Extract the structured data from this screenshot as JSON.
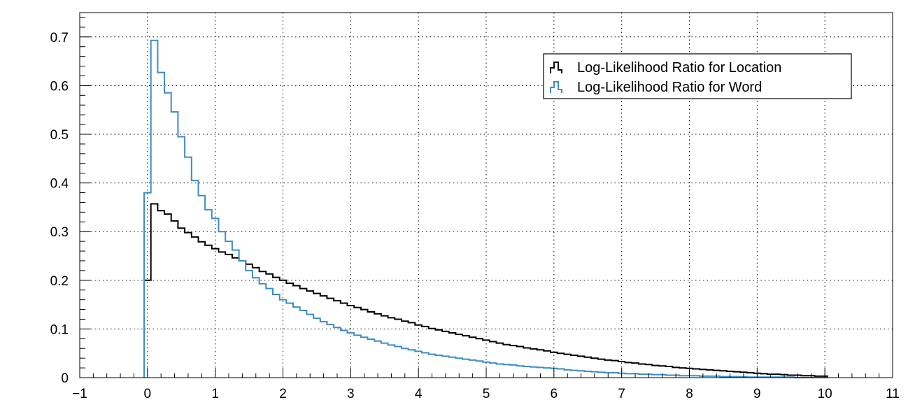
{
  "chart_data": {
    "type": "line",
    "title": "",
    "xlabel": "",
    "ylabel": "",
    "xlim": [
      -1,
      11
    ],
    "ylim": [
      0,
      0.75
    ],
    "xticks": [
      -1,
      0,
      1,
      2,
      3,
      4,
      5,
      6,
      7,
      8,
      9,
      10,
      11
    ],
    "xtick_labels": [
      "−1",
      "0",
      "1",
      "2",
      "3",
      "4",
      "5",
      "6",
      "7",
      "8",
      "9",
      "10",
      "11"
    ],
    "yticks": [
      0,
      0.1,
      0.2,
      0.3,
      0.4,
      0.5,
      0.6,
      0.7
    ],
    "ytick_labels": [
      "0",
      "0.1",
      "0.2",
      "0.3",
      "0.4",
      "0.5",
      "0.6",
      "0.7"
    ],
    "grid": true,
    "legend_position": "top-right",
    "histogram_binning": {
      "start": -0.05,
      "width": 0.1
    },
    "series": [
      {
        "name": "Log-Likelihood Ratio for Location",
        "color": "#000000",
        "style": "step",
        "values": [
          0.2,
          0.357,
          0.343,
          0.336,
          0.322,
          0.307,
          0.298,
          0.289,
          0.279,
          0.272,
          0.265,
          0.258,
          0.253,
          0.246,
          0.24,
          0.233,
          0.226,
          0.218,
          0.213,
          0.206,
          0.2,
          0.194,
          0.189,
          0.183,
          0.178,
          0.173,
          0.168,
          0.163,
          0.158,
          0.153,
          0.148,
          0.144,
          0.14,
          0.135,
          0.131,
          0.127,
          0.123,
          0.12,
          0.116,
          0.113,
          0.108,
          0.105,
          0.101,
          0.098,
          0.095,
          0.092,
          0.089,
          0.086,
          0.083,
          0.08,
          0.077,
          0.074,
          0.071,
          0.068,
          0.066,
          0.064,
          0.061,
          0.059,
          0.057,
          0.055,
          0.052,
          0.05,
          0.048,
          0.046,
          0.044,
          0.042,
          0.04,
          0.038,
          0.036,
          0.035,
          0.033,
          0.031,
          0.03,
          0.028,
          0.027,
          0.025,
          0.024,
          0.023,
          0.021,
          0.02,
          0.019,
          0.018,
          0.017,
          0.016,
          0.015,
          0.014,
          0.013,
          0.012,
          0.011,
          0.01,
          0.009,
          0.008,
          0.007,
          0.007,
          0.006,
          0.005,
          0.005,
          0.004,
          0.004,
          0.003,
          0.003
        ]
      },
      {
        "name": "Log-Likelihood Ratio for Word",
        "color": "#3c8dc5",
        "style": "step",
        "values": [
          0.38,
          0.693,
          0.627,
          0.585,
          0.546,
          0.495,
          0.453,
          0.405,
          0.374,
          0.345,
          0.327,
          0.3,
          0.28,
          0.262,
          0.24,
          0.22,
          0.205,
          0.193,
          0.183,
          0.171,
          0.16,
          0.153,
          0.145,
          0.138,
          0.13,
          0.122,
          0.115,
          0.109,
          0.103,
          0.097,
          0.092,
          0.087,
          0.083,
          0.079,
          0.075,
          0.071,
          0.067,
          0.064,
          0.06,
          0.057,
          0.054,
          0.051,
          0.048,
          0.046,
          0.044,
          0.042,
          0.04,
          0.038,
          0.036,
          0.034,
          0.032,
          0.03,
          0.028,
          0.027,
          0.026,
          0.024,
          0.023,
          0.022,
          0.021,
          0.02,
          0.019,
          0.018,
          0.016,
          0.015,
          0.014,
          0.013,
          0.012,
          0.011,
          0.01,
          0.01,
          0.009,
          0.008,
          0.008,
          0.007,
          0.007,
          0.006,
          0.006,
          0.005,
          0.005,
          0.004,
          0.004,
          0.004,
          0.003,
          0.003,
          0.003,
          0.002,
          0.002,
          0.002,
          0.002,
          0.001,
          0.001,
          0.001,
          0.001,
          0.001,
          0.001,
          0.001,
          0,
          0,
          0,
          0,
          0
        ]
      }
    ]
  }
}
